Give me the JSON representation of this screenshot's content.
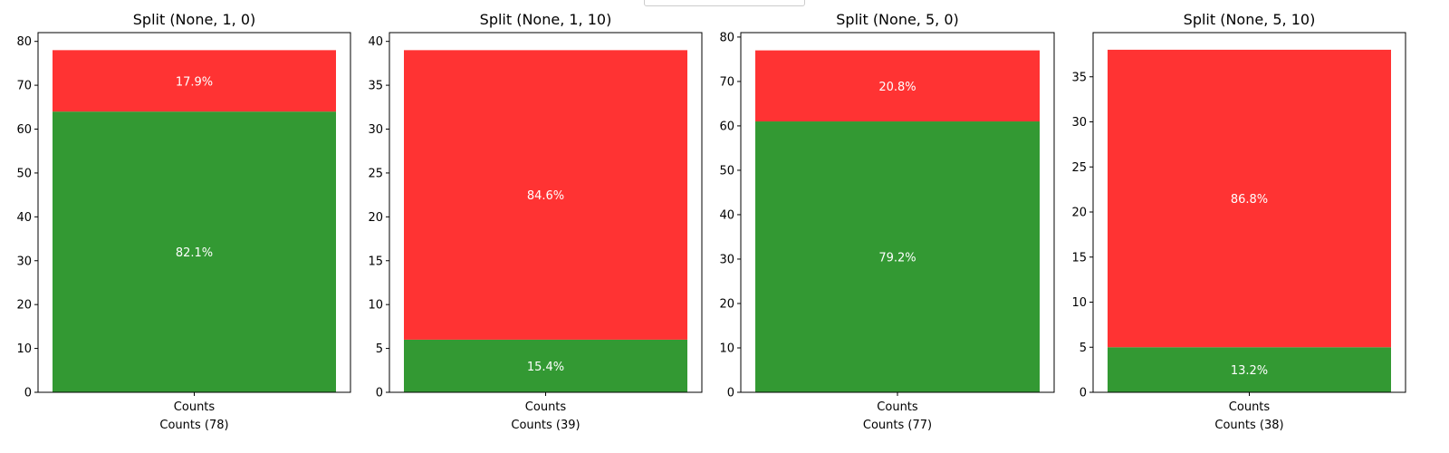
{
  "colors": {
    "positive": "#339933",
    "negative": "#ff3333",
    "pct_text": "#ffffff"
  },
  "chart_data": [
    {
      "type": "bar",
      "stacked": true,
      "title": "Split (None, 1, 0)",
      "categories": [
        "Counts"
      ],
      "xlabel": "Counts (78)",
      "ylim": [
        0,
        82
      ],
      "yticks": [
        0,
        10,
        20,
        30,
        40,
        50,
        60,
        70,
        80
      ],
      "series": [
        {
          "color": "#339933",
          "values": [
            64
          ],
          "label": "82.1%"
        },
        {
          "color": "#ff3333",
          "values": [
            14
          ],
          "label": "17.9%"
        }
      ]
    },
    {
      "type": "bar",
      "stacked": true,
      "title": "Split (None, 1, 10)",
      "categories": [
        "Counts"
      ],
      "xlabel": "Counts (39)",
      "ylim": [
        0,
        41
      ],
      "yticks": [
        0,
        5,
        10,
        15,
        20,
        25,
        30,
        35,
        40
      ],
      "series": [
        {
          "color": "#339933",
          "values": [
            6
          ],
          "label": "15.4%"
        },
        {
          "color": "#ff3333",
          "values": [
            33
          ],
          "label": "84.6%"
        }
      ]
    },
    {
      "type": "bar",
      "stacked": true,
      "title": "Split (None, 5, 0)",
      "categories": [
        "Counts"
      ],
      "xlabel": "Counts (77)",
      "ylim": [
        0,
        81
      ],
      "yticks": [
        0,
        10,
        20,
        30,
        40,
        50,
        60,
        70,
        80
      ],
      "series": [
        {
          "color": "#339933",
          "values": [
            61
          ],
          "label": "79.2%"
        },
        {
          "color": "#ff3333",
          "values": [
            16
          ],
          "label": "20.8%"
        }
      ]
    },
    {
      "type": "bar",
      "stacked": true,
      "title": "Split (None, 5, 10)",
      "categories": [
        "Counts"
      ],
      "xlabel": "Counts (38)",
      "ylim": [
        0,
        39.9
      ],
      "yticks": [
        0,
        5,
        10,
        15,
        20,
        25,
        30,
        35
      ],
      "series": [
        {
          "color": "#339933",
          "values": [
            5
          ],
          "label": "13.2%"
        },
        {
          "color": "#ff3333",
          "values": [
            33
          ],
          "label": "86.8%"
        }
      ]
    }
  ]
}
